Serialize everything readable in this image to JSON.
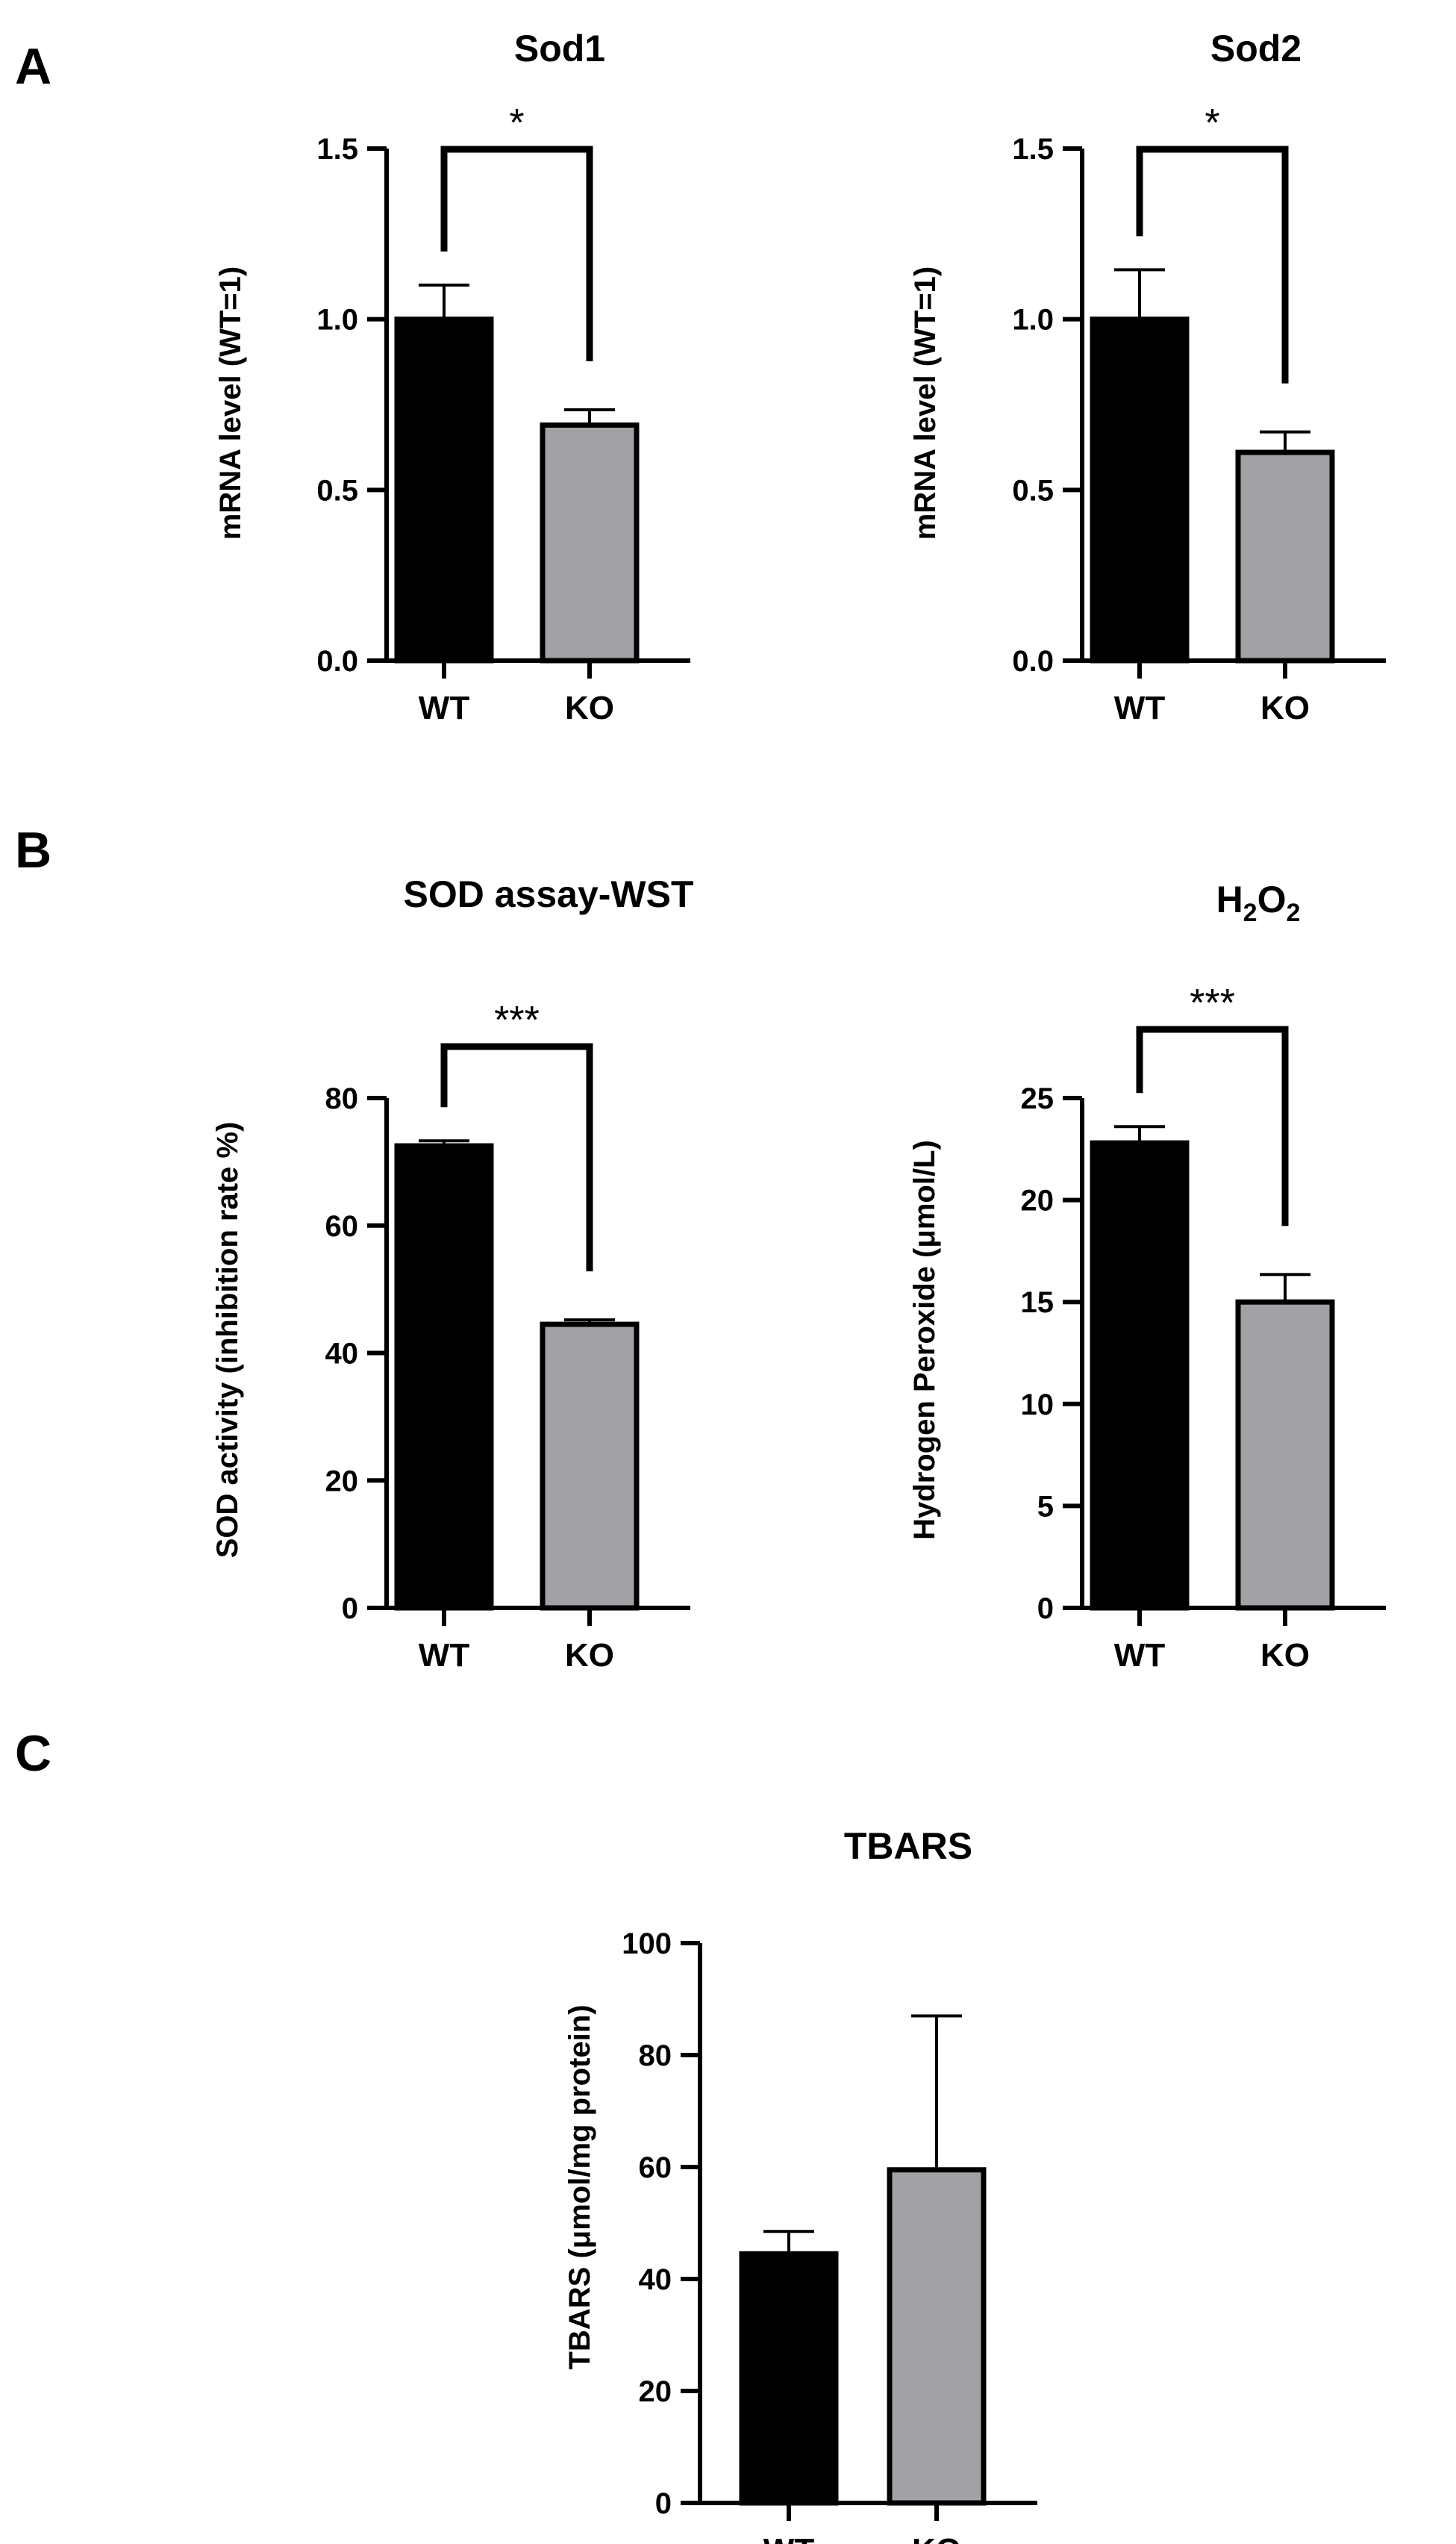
{
  "panels": [
    {
      "letter": "A"
    },
    {
      "letter": "B"
    },
    {
      "letter": "C"
    }
  ],
  "colors": {
    "wt_bar": "#000000",
    "ko_bar": "#a2a1a6",
    "axis": "#000000"
  },
  "chart_data": [
    {
      "id": "sod1",
      "panel": "A",
      "type": "bar",
      "title": "Sod1",
      "ylabel": "mRNA level (WT=1)",
      "categories": [
        "WT",
        "KO"
      ],
      "values": [
        1.0,
        0.69
      ],
      "errors": [
        0.1,
        0.045
      ],
      "ylim": [
        0,
        1.5
      ],
      "yticks": [
        0.0,
        0.5,
        1.0,
        1.5
      ],
      "ytick_labels": [
        "0.0",
        "0.5",
        "1.0",
        "1.5"
      ],
      "significance": "*"
    },
    {
      "id": "sod2",
      "panel": "A",
      "type": "bar",
      "title": "Sod2",
      "ylabel": "mRNA level (WT=1)",
      "categories": [
        "WT",
        "KO"
      ],
      "values": [
        1.0,
        0.61
      ],
      "errors": [
        0.145,
        0.06
      ],
      "ylim": [
        0,
        1.5
      ],
      "yticks": [
        0.0,
        0.5,
        1.0,
        1.5
      ],
      "ytick_labels": [
        "0.0",
        "0.5",
        "1.0",
        "1.5"
      ],
      "significance": "*"
    },
    {
      "id": "sod_assay",
      "panel": "B",
      "type": "bar",
      "title": "SOD assay-WST",
      "ylabel": "SOD activity (inhibition rate %)",
      "categories": [
        "WT",
        "KO"
      ],
      "values": [
        72.5,
        44.5
      ],
      "errors": [
        0.8,
        0.7
      ],
      "ylim": [
        0,
        80
      ],
      "yticks": [
        0,
        20,
        40,
        60,
        80
      ],
      "ytick_labels": [
        "0",
        "20",
        "40",
        "60",
        "80"
      ],
      "significance": "***"
    },
    {
      "id": "h2o2",
      "panel": "B",
      "type": "bar",
      "title": "H2O2",
      "title_parts": {
        "h": "H",
        "sub1": "2",
        "o": "O",
        "sub2": "2"
      },
      "ylabel": "Hydrogen  Peroxide (μmol/L)",
      "categories": [
        "WT",
        "KO"
      ],
      "values": [
        22.8,
        15.0
      ],
      "errors": [
        0.8,
        1.35
      ],
      "ylim": [
        0,
        25
      ],
      "yticks": [
        0,
        5,
        10,
        15,
        20,
        25
      ],
      "ytick_labels": [
        "0",
        "5",
        "10",
        "15",
        "20",
        "25"
      ],
      "significance": "***"
    },
    {
      "id": "tbars",
      "panel": "C",
      "type": "bar",
      "title": "TBARS",
      "ylabel": "TBARS (μmol/mg protein)",
      "categories": [
        "WT",
        "KO"
      ],
      "values": [
        44.5,
        59.5
      ],
      "errors": [
        4.0,
        27.5
      ],
      "ylim": [
        0,
        100
      ],
      "yticks": [
        0,
        20,
        40,
        60,
        80,
        100
      ],
      "ytick_labels": [
        "0",
        "20",
        "40",
        "60",
        "80",
        "100"
      ],
      "significance": ""
    }
  ]
}
